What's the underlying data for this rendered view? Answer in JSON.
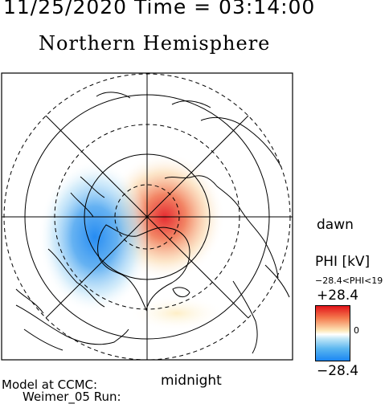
{
  "header": {
    "datetime": "11/25/2020 Time = 03:14:00",
    "title": "Northern Hemisphere"
  },
  "map": {
    "orientation_labels": {
      "dawn": "dawn",
      "midnight": "midnight"
    },
    "potential_pattern": {
      "positive_cell": "dawn-side (red)",
      "negative_cell": "dusk-side (blue)"
    }
  },
  "colorbar": {
    "title": "PHI [kV]",
    "range_text": "−28.4<PHI<19",
    "max_label": "+28.4",
    "zero_label": "0",
    "min_label": "−28.4",
    "colors": {
      "max": "#e2141a",
      "mid": "#ffffff",
      "min": "#1b86f2"
    }
  },
  "footer": {
    "model_line1": "Model at CCMC:",
    "model_line2": "Weimer_05 Run:"
  }
}
